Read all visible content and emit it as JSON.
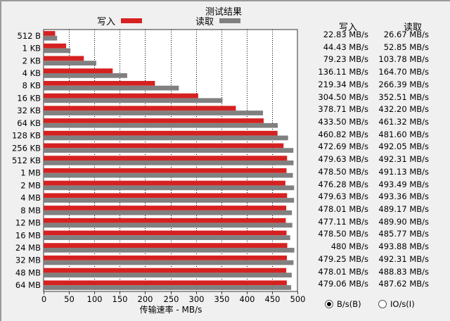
{
  "header": {
    "results_title": "测试结果",
    "legend_write": "写入",
    "legend_read": "读取"
  },
  "colors": {
    "write": "#d62121",
    "read": "#808080",
    "plot_background": "#ffffff"
  },
  "value_columns": {
    "write_header": "写入",
    "read_header": "读取"
  },
  "units": {
    "options": [
      "B/s(B)",
      "IO/s(I)"
    ],
    "selected": "B/s(B)"
  },
  "chart_data": {
    "type": "bar",
    "orientation": "horizontal",
    "categories": [
      "512 B",
      "1 KB",
      "2 KB",
      "4 KB",
      "8 KB",
      "16 KB",
      "32 KB",
      "64 KB",
      "128 KB",
      "256 KB",
      "512 KB",
      "1 MB",
      "2 MB",
      "4 MB",
      "8 MB",
      "12 MB",
      "16 MB",
      "24 MB",
      "32 MB",
      "48 MB",
      "64 MB"
    ],
    "series": [
      {
        "name": "写入",
        "values": [
          22.83,
          44.43,
          79.23,
          136.11,
          219.34,
          304.5,
          378.71,
          433.5,
          460.82,
          472.69,
          479.63,
          478.5,
          476.28,
          479.63,
          478.01,
          477.11,
          478.5,
          480,
          479.25,
          478.01,
          479.06
        ]
      },
      {
        "name": "读取",
        "values": [
          26.67,
          52.85,
          103.78,
          164.7,
          266.39,
          352.51,
          432.2,
          461.32,
          481.6,
          492.05,
          492.31,
          491.13,
          493.49,
          493.36,
          489.17,
          489.9,
          485.77,
          493.88,
          492.31,
          488.83,
          487.62
        ]
      }
    ],
    "write_labels": [
      "22.83 MB/s",
      "44.43 MB/s",
      "79.23 MB/s",
      "136.11 MB/s",
      "219.34 MB/s",
      "304.50 MB/s",
      "378.71 MB/s",
      "433.50 MB/s",
      "460.82 MB/s",
      "472.69 MB/s",
      "479.63 MB/s",
      "478.50 MB/s",
      "476.28 MB/s",
      "479.63 MB/s",
      "478.01 MB/s",
      "477.11 MB/s",
      "478.50 MB/s",
      "480 MB/s",
      "479.25 MB/s",
      "478.01 MB/s",
      "479.06 MB/s"
    ],
    "read_labels": [
      "26.67 MB/s",
      "52.85 MB/s",
      "103.78 MB/s",
      "164.70 MB/s",
      "266.39 MB/s",
      "352.51 MB/s",
      "432.20 MB/s",
      "461.32 MB/s",
      "481.60 MB/s",
      "492.05 MB/s",
      "492.31 MB/s",
      "491.13 MB/s",
      "493.49 MB/s",
      "493.36 MB/s",
      "489.17 MB/s",
      "489.90 MB/s",
      "485.77 MB/s",
      "493.88 MB/s",
      "492.31 MB/s",
      "488.83 MB/s",
      "487.62 MB/s"
    ],
    "x_ticks": [
      "0",
      "50",
      "100",
      "150",
      "200",
      "250",
      "300",
      "350",
      "400",
      "450",
      "500"
    ],
    "xlabel": "传输速率 - MB/s",
    "xlim": [
      0,
      500
    ],
    "grid": true
  }
}
